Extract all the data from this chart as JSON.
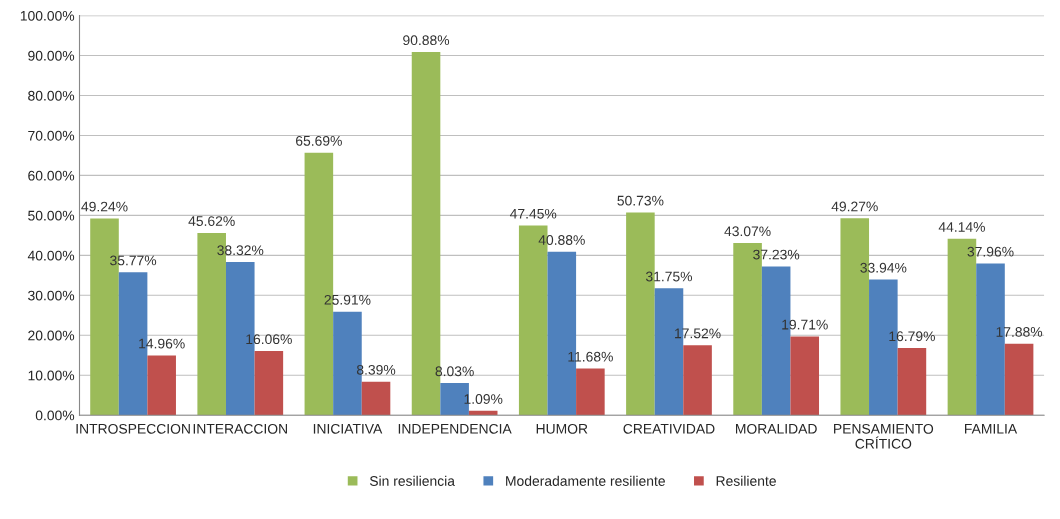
{
  "chart_data": {
    "type": "bar",
    "categories": [
      "INTROSPECCION",
      "INTERACCION",
      "INICIATIVA",
      "INDEPENDENCIA",
      "HUMOR",
      "CREATIVIDAD",
      "MORALIDAD",
      "PENSAMIENTO\nCRÍTICO",
      "FAMILIA"
    ],
    "series": [
      {
        "name": "Sin resiliencia",
        "color": "#9bbb59",
        "values": [
          49.24,
          45.62,
          65.69,
          90.88,
          47.45,
          50.73,
          43.07,
          49.27,
          44.14
        ],
        "value_labels": [
          "49.24%",
          "45.62%",
          "65.69%",
          "90.88%",
          "47.45%",
          "50.73%",
          "43.07%",
          "49.27%",
          "44.14%"
        ]
      },
      {
        "name": "Moderadamente resiliente",
        "color": "#4f81bd",
        "values": [
          35.77,
          38.32,
          25.91,
          8.03,
          40.88,
          31.75,
          37.23,
          33.94,
          37.96
        ],
        "value_labels": [
          "35.77%",
          "38.32%",
          "25.91%",
          "8.03%",
          "40.88%",
          "31.75%",
          "37.23%",
          "33.94%",
          "37.96%"
        ]
      },
      {
        "name": "Resiliente",
        "color": "#c0504d",
        "values": [
          14.96,
          16.06,
          8.39,
          1.09,
          11.68,
          17.52,
          19.71,
          16.79,
          17.88
        ],
        "value_labels": [
          "14.96%",
          "16.06%",
          "8.39%",
          "1.09%",
          "11.68%",
          "17.52%",
          "19.71%",
          "16.79%",
          "17.88%"
        ]
      }
    ],
    "ylim": [
      0,
      100
    ],
    "yticks": [
      {
        "value": 0,
        "label": "0.00%"
      },
      {
        "value": 10,
        "label": "10.00%"
      },
      {
        "value": 20,
        "label": "20.00%"
      },
      {
        "value": 30,
        "label": "30.00%"
      },
      {
        "value": 40,
        "label": "40.00%"
      },
      {
        "value": 50,
        "label": "50.00%"
      },
      {
        "value": 60,
        "label": "60.00%"
      },
      {
        "value": 70,
        "label": "70.00%"
      },
      {
        "value": 80,
        "label": "80.00%"
      },
      {
        "value": 90,
        "label": "90.00%"
      },
      {
        "value": 100,
        "label": "100.00%"
      }
    ],
    "grid": "y",
    "legend": "bottom"
  }
}
